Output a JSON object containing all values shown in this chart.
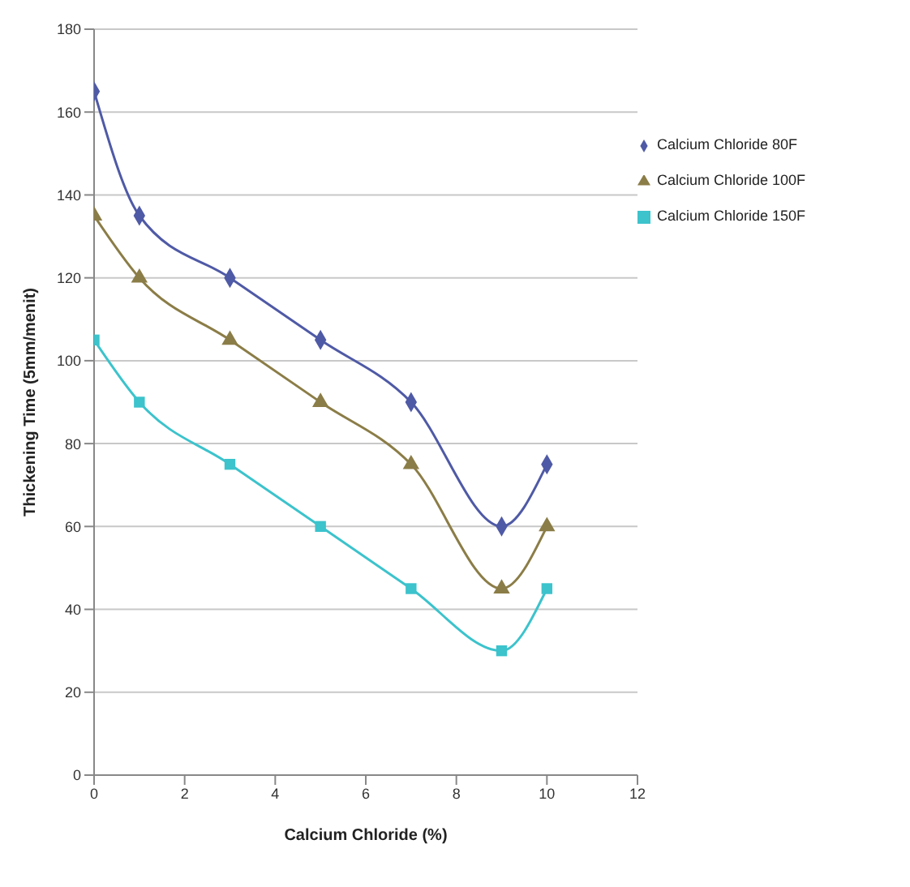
{
  "chart_data": {
    "type": "line",
    "xlabel": "Calcium Chloride (%)",
    "ylabel": "Thickening Time (5mm/menit)",
    "x": [
      0,
      1,
      3,
      5,
      7,
      9,
      10
    ],
    "series": [
      {
        "name": "Calcium Chloride 80F",
        "color": "#4f5aa6",
        "marker": "diamond",
        "values": [
          165,
          135,
          120,
          105,
          90,
          60,
          75
        ]
      },
      {
        "name": "Calcium Chloride 100F",
        "color": "#8b7d47",
        "marker": "triangle",
        "values": [
          135,
          120,
          105,
          90,
          75,
          45,
          60
        ]
      },
      {
        "name": "Calcium Chloride 150F",
        "color": "#3cc3cc",
        "marker": "square",
        "values": [
          105,
          90,
          75,
          60,
          45,
          30,
          45
        ]
      }
    ],
    "xlim": [
      0,
      12
    ],
    "xticks": [
      0,
      2,
      4,
      6,
      8,
      10,
      12
    ],
    "ylim": [
      0,
      180
    ],
    "yticks": [
      0,
      20,
      40,
      60,
      80,
      100,
      120,
      140,
      160,
      180
    ],
    "grid": "y",
    "legend": "right",
    "line_style": "solid"
  }
}
